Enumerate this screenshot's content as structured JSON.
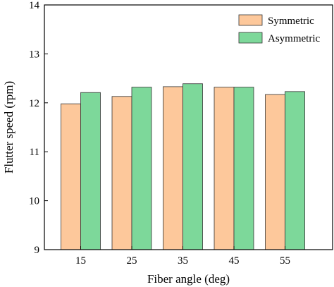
{
  "chart_data": {
    "type": "bar",
    "title": "",
    "xlabel": "Fiber angle (deg)",
    "ylabel": "Flutter speed (rpm)",
    "categories": [
      "15",
      "25",
      "35",
      "45",
      "55"
    ],
    "series": [
      {
        "name": "Symmetric",
        "color": "#FDC89B",
        "values": [
          11.98,
          12.13,
          12.33,
          12.32,
          12.17
        ]
      },
      {
        "name": "Asymmetric",
        "color": "#7DD89A",
        "values": [
          12.21,
          12.32,
          12.39,
          12.32,
          12.23
        ]
      }
    ],
    "ylim": [
      9,
      14
    ],
    "yticks": [
      "9",
      "10",
      "11",
      "12",
      "13",
      "14"
    ],
    "grid": false,
    "legend_position": "top-right"
  }
}
